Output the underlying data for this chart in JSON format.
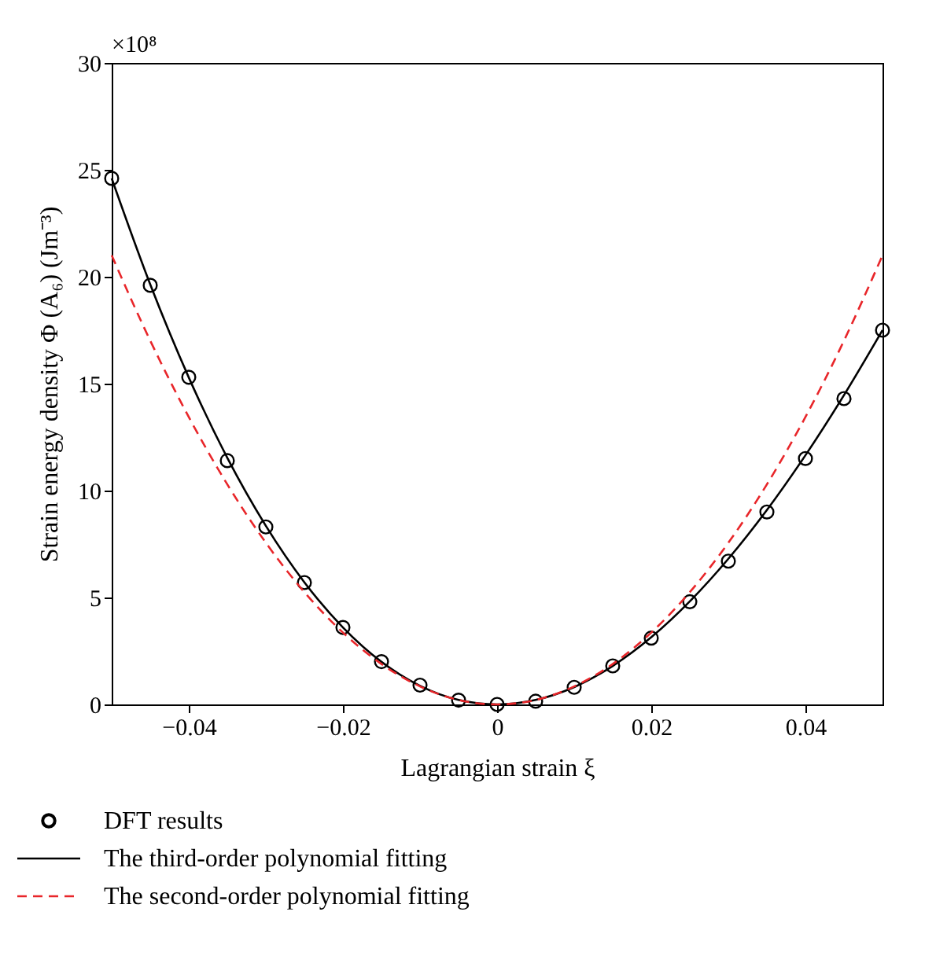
{
  "chart_data": {
    "type": "line",
    "xlabel": "Lagrangian strain ξ",
    "ylabel": "Strain energy density Φ (A₆) (Jm⁻³)",
    "annotations": [
      "×10⁸"
    ],
    "x": [
      -0.05,
      -0.045,
      -0.04,
      -0.035,
      -0.03,
      -0.025,
      -0.02,
      -0.015,
      -0.01,
      -0.005,
      0,
      0.005,
      0.01,
      0.015,
      0.02,
      0.025,
      0.03,
      0.035,
      0.04,
      0.045,
      0.05
    ],
    "series": [
      {
        "name": "DFT results",
        "type": "scatter",
        "color": "#000000",
        "marker": "circle",
        "values": [
          24.6,
          19.6,
          15.3,
          11.4,
          8.3,
          5.7,
          3.6,
          2.0,
          0.9,
          0.2,
          0,
          0.15,
          0.8,
          1.8,
          3.1,
          4.8,
          6.7,
          9.0,
          11.5,
          14.3,
          17.5
        ]
      },
      {
        "name": "The third-order polynomial fitting",
        "type": "line",
        "color": "#000000",
        "line_style": "solid",
        "values": [
          24.6,
          19.64,
          15.29,
          11.53,
          8.35,
          5.71,
          3.6,
          1.99,
          0.87,
          0.21,
          0,
          0.21,
          0.81,
          1.8,
          3.14,
          4.82,
          6.81,
          9.09,
          11.65,
          14.46,
          17.5
        ]
      },
      {
        "name": "The second-order polynomial fitting",
        "type": "line",
        "color": "#e8262a",
        "line_style": "dashed",
        "values": [
          21.0,
          17.01,
          13.44,
          10.29,
          7.56,
          5.25,
          3.36,
          1.89,
          0.84,
          0.21,
          0,
          0.21,
          0.84,
          1.89,
          3.36,
          5.25,
          7.56,
          10.29,
          13.44,
          17.01,
          21.0
        ]
      }
    ],
    "xlim": [
      -0.05,
      0.05
    ],
    "xticks": [
      {
        "value": -0.04,
        "label": "−0.04"
      },
      {
        "value": -0.02,
        "label": "−0.02"
      },
      0,
      0.02,
      0.04
    ],
    "ylim": [
      0,
      30
    ],
    "yticks": [
      0,
      5,
      10,
      15,
      20,
      25,
      30
    ],
    "grid": false,
    "legend": "bottom"
  }
}
